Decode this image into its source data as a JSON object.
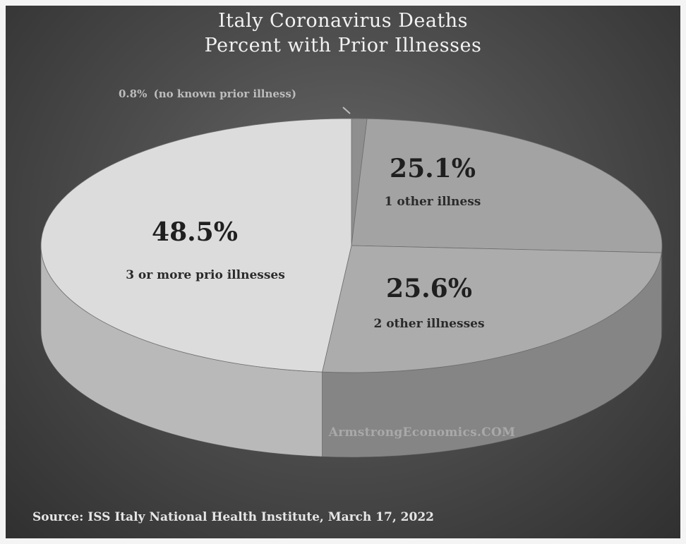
{
  "chart_data": {
    "type": "pie",
    "title": "Italy Coronavirus Deaths",
    "subtitle": "Percent with Prior Illnesses",
    "slices": [
      {
        "percent_label": "0.8%",
        "label": "(no known prior illness)",
        "value": 0.8
      },
      {
        "percent_label": "25.1%",
        "label": "1 other illness",
        "value": 25.1
      },
      {
        "percent_label": "25.6%",
        "label": "2 other illnesses",
        "value": 25.6
      },
      {
        "percent_label": "48.5%",
        "label": "3 or more prio illnesses",
        "value": 48.5
      }
    ],
    "watermark": "ArmstrongEconomics.COM",
    "source": "Source: ISS Italy National Health Institute, March 17, 2022",
    "colors": {
      "slice_top": [
        "#8f8f8f",
        "#a3a3a3",
        "#acacac",
        "#dcdcdc"
      ],
      "slice_side": [
        "#6a6a6a",
        "#7b7b7b",
        "#858585",
        "#b9b9b9"
      ]
    }
  }
}
